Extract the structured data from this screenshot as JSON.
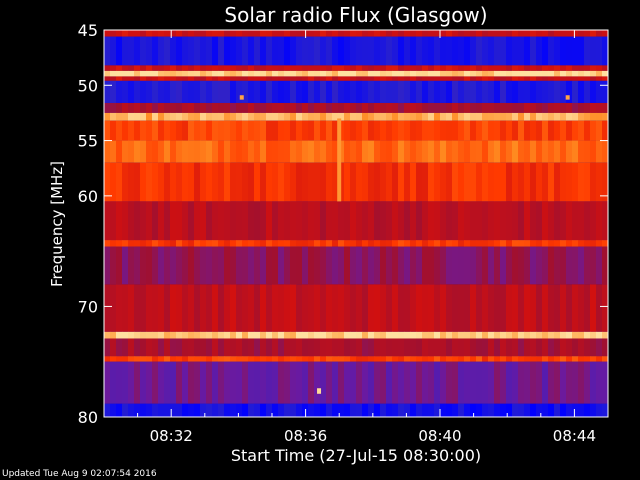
{
  "chart_data": {
    "type": "heatmap",
    "title": "Solar radio Flux (Glasgow)",
    "xlabel": "Start Time (27-Jul-15 08:30:00)",
    "ylabel": "Frequency [MHz]",
    "xlim": [
      "08:30",
      "08:45"
    ],
    "ylim": [
      45,
      80
    ],
    "y_axis_inverted": true,
    "x_ticks": [
      "08:32",
      "08:36",
      "08:40",
      "08:44"
    ],
    "x_tick_minutes": [
      2,
      6,
      10,
      14
    ],
    "y_ticks": [
      45,
      50,
      55,
      60,
      70,
      80
    ],
    "colormap": [
      "#0000ff",
      "#2a22cc",
      "#6a1aa0",
      "#a01030",
      "#d01010",
      "#ff3a00",
      "#ff8a20",
      "#ffe0a0"
    ],
    "frequency_bands": [
      {
        "from": 45.0,
        "to": 45.6,
        "intensity": 0.55
      },
      {
        "from": 45.6,
        "to": 48.2,
        "intensity": 0.08
      },
      {
        "from": 48.2,
        "to": 48.7,
        "intensity": 0.55
      },
      {
        "from": 48.7,
        "to": 49.2,
        "intensity": 0.98
      },
      {
        "from": 49.2,
        "to": 49.6,
        "intensity": 0.55
      },
      {
        "from": 49.6,
        "to": 51.6,
        "intensity": 0.1
      },
      {
        "from": 51.6,
        "to": 52.5,
        "intensity": 0.45
      },
      {
        "from": 52.5,
        "to": 53.2,
        "intensity": 0.92
      },
      {
        "from": 53.2,
        "to": 55.0,
        "intensity": 0.72
      },
      {
        "from": 55.0,
        "to": 57.0,
        "intensity": 0.8
      },
      {
        "from": 57.0,
        "to": 60.5,
        "intensity": 0.68
      },
      {
        "from": 60.5,
        "to": 64.0,
        "intensity": 0.5
      },
      {
        "from": 64.0,
        "to": 64.6,
        "intensity": 0.7
      },
      {
        "from": 64.6,
        "to": 68.0,
        "intensity": 0.38
      },
      {
        "from": 68.0,
        "to": 72.3,
        "intensity": 0.52
      },
      {
        "from": 72.3,
        "to": 72.9,
        "intensity": 0.97
      },
      {
        "from": 72.9,
        "to": 74.5,
        "intensity": 0.45
      },
      {
        "from": 74.5,
        "to": 75.0,
        "intensity": 0.72
      },
      {
        "from": 75.0,
        "to": 78.8,
        "intensity": 0.3
      },
      {
        "from": 78.8,
        "to": 80.0,
        "intensity": 0.06
      }
    ],
    "bursts": [
      {
        "minute": 7.0,
        "from": 53.0,
        "to": 60.5,
        "intensity": 0.88
      },
      {
        "minute": 4.1,
        "from": 50.9,
        "to": 51.3,
        "intensity": 0.9
      },
      {
        "minute": 13.8,
        "from": 50.9,
        "to": 51.3,
        "intensity": 0.9
      },
      {
        "minute": 6.4,
        "from": 77.4,
        "to": 77.9,
        "intensity": 0.99
      }
    ]
  },
  "footer": {
    "updated": "Updated Tue Aug  9 02:07:54 2016"
  }
}
